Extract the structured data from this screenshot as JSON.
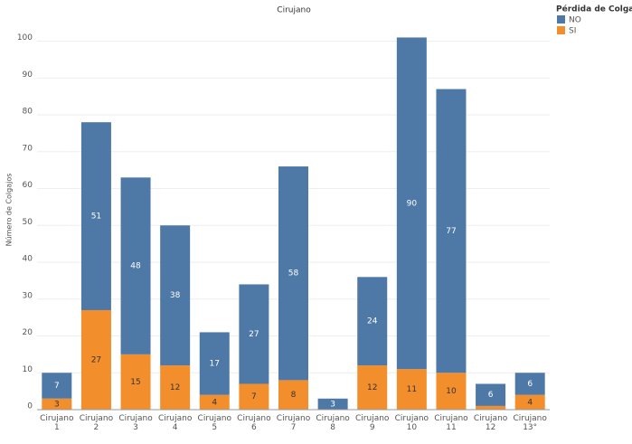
{
  "chart_data": {
    "type": "stacked-bar",
    "title": "Cirujano",
    "y_label": "Número de Colgajos",
    "legend_title": "Pérdida de Colgajo",
    "legend": "right-top",
    "categories": [
      "Cirujano 1",
      "Cirujano 2",
      "Cirujano 3",
      "Cirujano 4",
      "Cirujano 5",
      "Cirujano 6",
      "Cirujano 7",
      "Cirujano 8",
      "Cirujano 9",
      "Cirujano 10",
      "Cirujano 11",
      "Cirujano 12",
      "Cirujano 13°"
    ],
    "series": [
      {
        "name": "NO",
        "color": "#4e79a7",
        "values": [
          7,
          51,
          48,
          38,
          17,
          27,
          58,
          3,
          24,
          90,
          77,
          6,
          6
        ]
      },
      {
        "name": "SI",
        "color": "#f28e2b",
        "values": [
          3,
          27,
          15,
          12,
          4,
          7,
          8,
          0,
          12,
          11,
          10,
          1,
          4
        ]
      }
    ],
    "ylim": [
      0,
      107
    ],
    "yticks": [
      0,
      10,
      20,
      30,
      40,
      50,
      60,
      70,
      80,
      90,
      100
    ],
    "grid": true
  }
}
